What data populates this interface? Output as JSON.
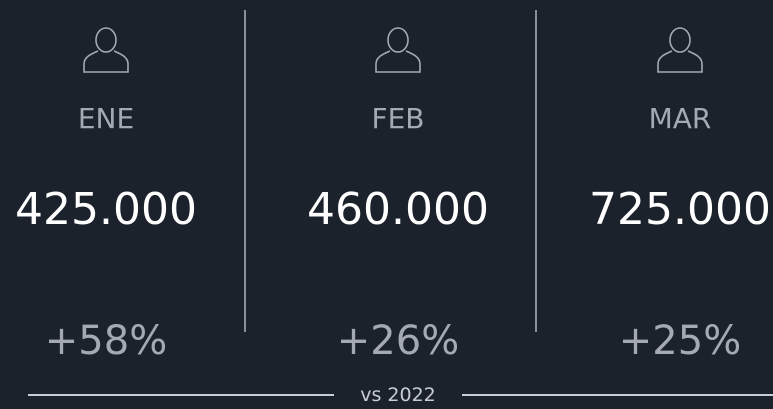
{
  "columns": [
    {
      "month": "ENE",
      "value": "425.000",
      "change": "+58%"
    },
    {
      "month": "FEB",
      "value": "460.000",
      "change": "+26%"
    },
    {
      "month": "MAR",
      "value": "725.000",
      "change": "+25%"
    }
  ],
  "footer": "vs 2022"
}
